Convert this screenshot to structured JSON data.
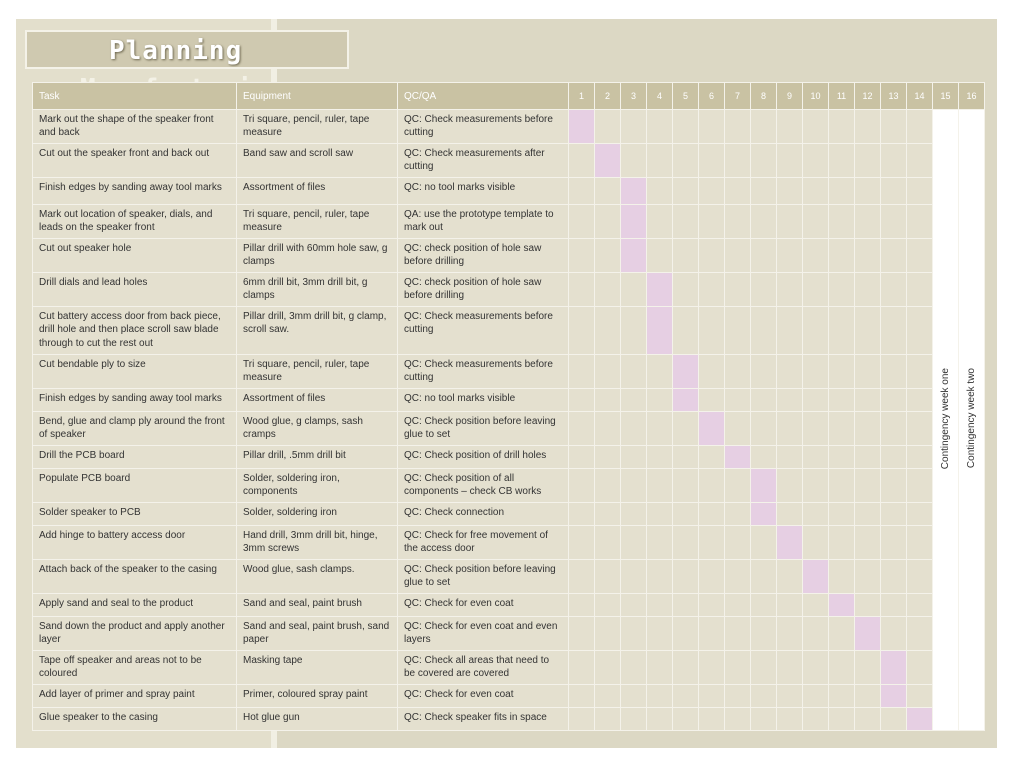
{
  "title": "Planning",
  "title_overflow": "Manufacturing",
  "headers": {
    "task": "Task",
    "equipment": "Equipment",
    "qc": "QC/QA",
    "weeks": [
      "1",
      "2",
      "3",
      "4",
      "5",
      "6",
      "7",
      "8",
      "9",
      "10",
      "11",
      "12",
      "13",
      "14",
      "15",
      "16"
    ]
  },
  "contingency": {
    "week15": "Contingency week one",
    "week16": "Contingency week two"
  },
  "rows": [
    {
      "task": "Mark out the shape of the speaker front and back",
      "equipment": "Tri square, pencil, ruler, tape measure",
      "qc": "QC: Check measurements before cutting",
      "week": 1
    },
    {
      "task": "Cut out the speaker front and back out",
      "equipment": "Band saw and scroll saw",
      "qc": "QC: Check measurements after cutting",
      "week": 2
    },
    {
      "task": "Finish edges by sanding away tool marks",
      "equipment": "Assortment of files",
      "qc": "QC: no tool marks visible",
      "week": 3
    },
    {
      "task": "Mark out location of speaker, dials, and leads on the speaker front",
      "equipment": "Tri square, pencil, ruler, tape measure",
      "qc": "QA: use the prototype template to mark out",
      "week": 3
    },
    {
      "task": "Cut out speaker hole",
      "equipment": "Pillar drill with 60mm hole saw, g clamps",
      "qc": "QC: check position  of hole saw before drilling",
      "week": 3
    },
    {
      "task": "Drill dials and lead holes",
      "equipment": "6mm drill bit, 3mm drill bit, g clamps",
      "qc": "QC: check position  of hole saw before drilling",
      "week": 4
    },
    {
      "task": "Cut battery access door from back piece, drill hole and then place scroll saw blade through to cut the rest out",
      "equipment": "Pillar drill, 3mm drill bit, g clamp, scroll saw.",
      "qc": "QC: Check measurements before cutting",
      "week": 4
    },
    {
      "task": "Cut bendable ply to size",
      "equipment": "Tri square, pencil, ruler, tape measure",
      "qc": "QC: Check measurements before cutting",
      "week": 5
    },
    {
      "task": "Finish edges by sanding away tool marks",
      "equipment": "Assortment of files",
      "qc": "QC: no tool marks visible",
      "week": 5
    },
    {
      "task": "Bend, glue and clamp ply around the front of speaker",
      "equipment": "Wood glue, g clamps, sash cramps",
      "qc": "QC: Check position before leaving glue to set",
      "week": 6
    },
    {
      "task": "Drill the PCB board",
      "equipment": "Pillar drill, .5mm drill bit",
      "qc": "QC: Check position of drill holes",
      "week": 7
    },
    {
      "task": "Populate PCB board",
      "equipment": "Solder, soldering iron, components",
      "qc": "QC:  Check position of all components – check CB works",
      "week": 8
    },
    {
      "task": "Solder speaker to PCB",
      "equipment": "Solder, soldering iron",
      "qc": "QC: Check connection",
      "week": 8
    },
    {
      "task": "Add hinge to battery access door",
      "equipment": "Hand drill, 3mm drill bit, hinge, 3mm screws",
      "qc": "QC: Check for free movement of the access door",
      "week": 9
    },
    {
      "task": "Attach back of the speaker to the casing",
      "equipment": "Wood glue, sash clamps.",
      "qc": "QC: Check position before leaving glue to set",
      "week": 10
    },
    {
      "task": "Apply sand and seal to the product",
      "equipment": "Sand and seal, paint brush",
      "qc": "QC: Check for even coat",
      "week": 11
    },
    {
      "task": "Sand down the product and apply another layer",
      "equipment": "Sand and seal, paint brush, sand paper",
      "qc": "QC: Check for even coat and even layers",
      "week": 12
    },
    {
      "task": "Tape off speaker and areas not to be coloured",
      "equipment": "Masking tape",
      "qc": "QC: Check all areas that need to be covered are covered",
      "week": 13
    },
    {
      "task": "Add layer of primer and spray paint",
      "equipment": "Primer, coloured spray paint",
      "qc": "QC: Check for even coat",
      "week": 13
    },
    {
      "task": "Glue speaker to the casing",
      "equipment": "Hot glue gun",
      "qc": "QC: Check speaker fits in space",
      "week": 14
    }
  ]
}
